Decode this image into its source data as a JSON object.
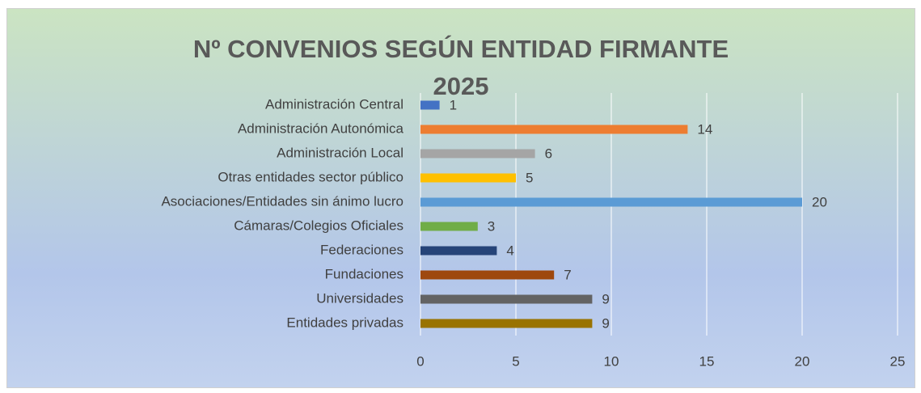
{
  "chart_data": {
    "type": "barh",
    "title": "Nº CONVENIOS SEGÚN ENTIDAD FIRMANTE 2025",
    "categories": [
      "Administración Central",
      "Administración Autonómica",
      "Administración Local",
      "Otras entidades sector público",
      "Asociaciones/Entidades sin ánimo lucro",
      "Cámaras/Colegios Oficiales",
      "Federaciones",
      "Fundaciones",
      "Universidades",
      "Entidades privadas"
    ],
    "values": [
      1,
      14,
      6,
      5,
      20,
      3,
      4,
      7,
      9,
      9
    ],
    "colors": [
      "#4472c4",
      "#ed7d31",
      "#a5a5a5",
      "#ffc000",
      "#5b9bd5",
      "#70ad47",
      "#264478",
      "#9e480e",
      "#636363",
      "#997300"
    ],
    "xlim": [
      0,
      25
    ],
    "xticks": [
      0,
      5,
      10,
      15,
      20,
      25
    ],
    "grid": true
  }
}
